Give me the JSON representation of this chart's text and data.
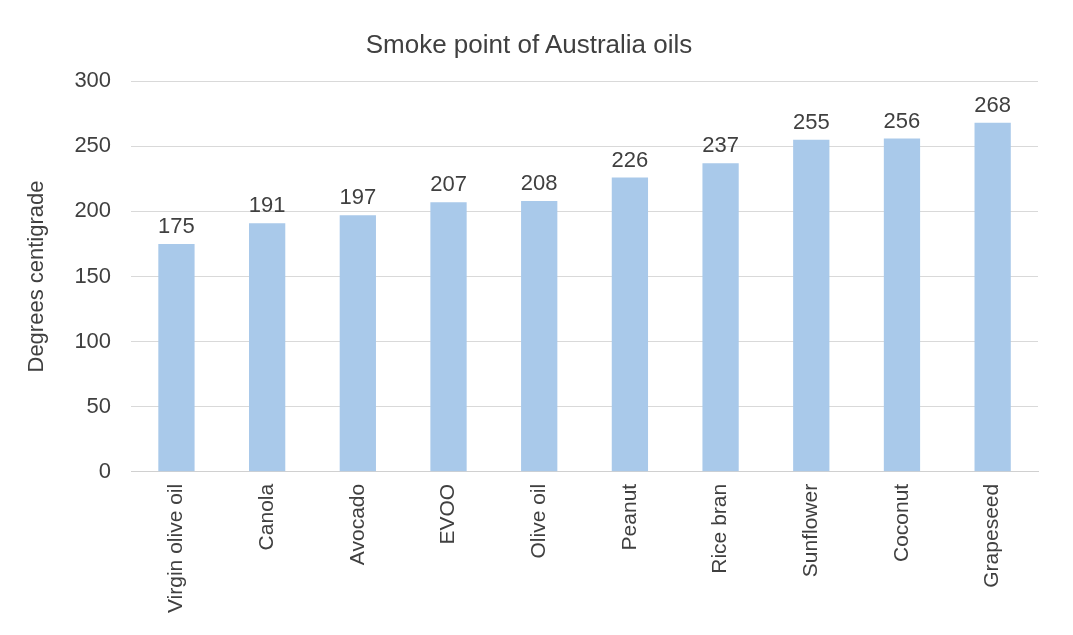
{
  "chart_data": {
    "type": "bar",
    "title": "Smoke point of Australia oils",
    "ylabel": "Degrees centigrade",
    "categories": [
      "Virgin olive oil",
      "Canola",
      "Avocado",
      "EVOO",
      "Olive oil",
      "Peanut",
      "Rice bran",
      "Sunflower",
      "Coconut",
      "Grapeseed"
    ],
    "values": [
      175,
      191,
      197,
      207,
      208,
      226,
      237,
      255,
      256,
      268
    ],
    "color": "#a9c9ea",
    "ylim": [
      0,
      300
    ],
    "yticks": [
      0,
      50,
      100,
      150,
      200,
      250,
      300
    ],
    "grid": "y",
    "data_labels": true
  }
}
